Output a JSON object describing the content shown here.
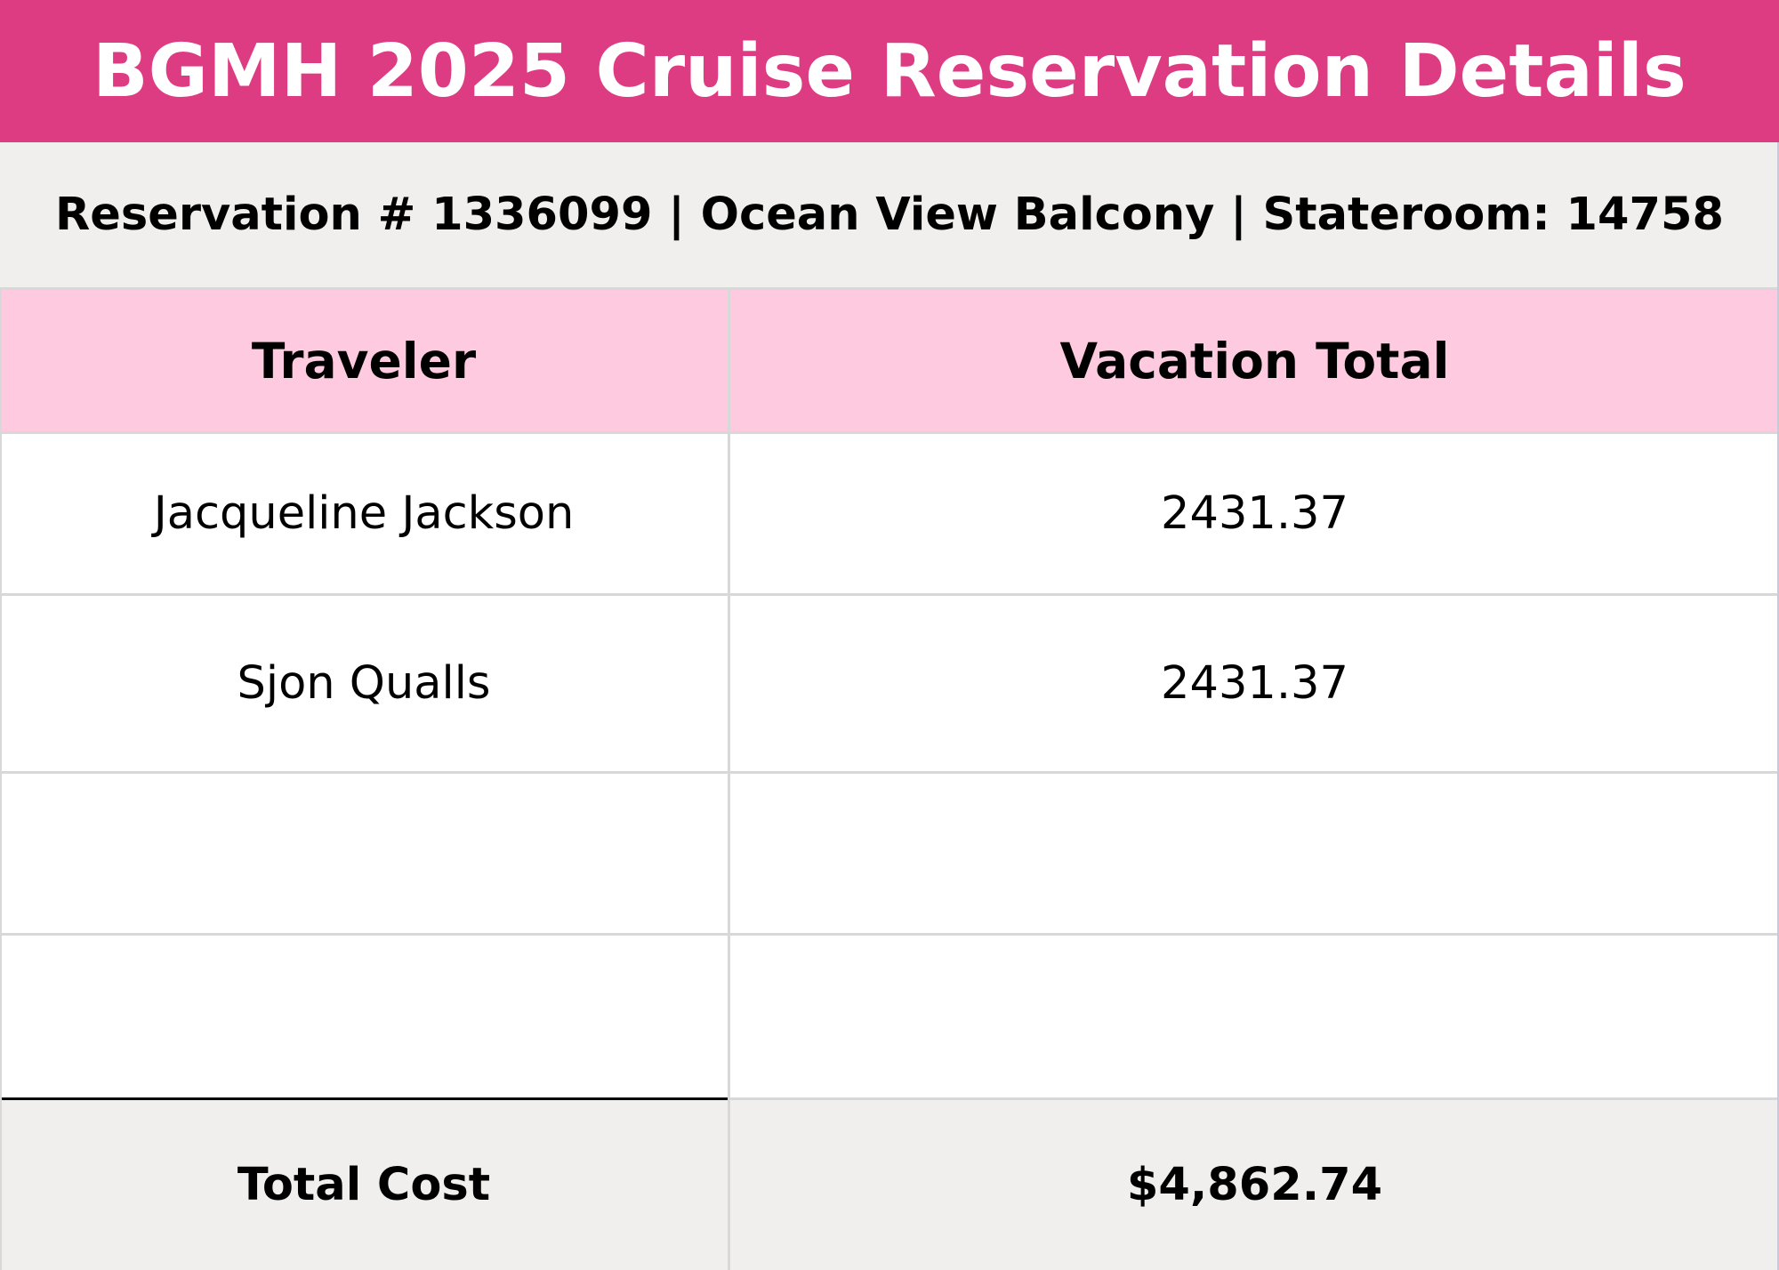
{
  "colors": {
    "title_bg": "#de3c82",
    "subtitle_bg": "#f0efed",
    "header_bg": "#fdcae0",
    "total_bg": "#f0efed",
    "body_bg": "#ffffff"
  },
  "title": "BGMH 2025 Cruise Reservation Details",
  "subtitle": "Reservation # 1336099 | Ocean View Balcony | Stateroom: 14758",
  "table": {
    "headers": {
      "traveler": "Traveler",
      "vacation_total": "Vacation Total"
    },
    "rows": [
      {
        "traveler": "Jacqueline Jackson",
        "vacation_total": "2431.37"
      },
      {
        "traveler": "Sjon Qualls",
        "vacation_total": "2431.37"
      },
      {
        "traveler": "",
        "vacation_total": ""
      },
      {
        "traveler": "",
        "vacation_total": ""
      }
    ],
    "total": {
      "label": "Total Cost",
      "value": "$4,862.74"
    }
  }
}
